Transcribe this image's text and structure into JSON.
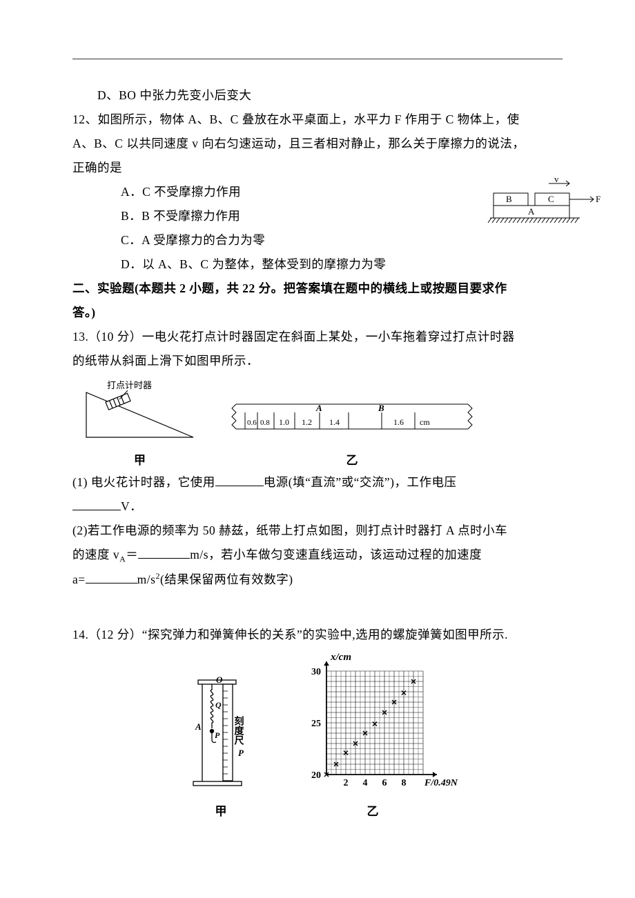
{
  "q11": {
    "optD": "D、BO 中张力先变小后变大"
  },
  "q12": {
    "stem1": "12、如图所示，物体 A、B、C 叠放在水平桌面上，水平力 F 作用于 C 物体上，使",
    "stem2": "A、B、C 以共同速度 v 向右匀速运动，且三者相对静止，那么关于摩擦力的说法，",
    "stem3": "正确的是",
    "optA": "A．C 不受摩擦力作用",
    "optB": "B．B 不受摩擦力作用",
    "optC": "C．A 受摩擦力的合力为零",
    "optD": "D．以 A、B、C 为整体，整体受到的摩擦力为零",
    "diagram": {
      "labels": {
        "v": "v",
        "B": "B",
        "C": "C",
        "A": "A",
        "F": "F"
      },
      "stroke": "#000000"
    }
  },
  "section2": {
    "title1": "二、实验题(本题共 2 小题，共 22 分。把答案填在题中的横线上或按题目要求作",
    "title2": "答。)"
  },
  "q13": {
    "stem1": "13.（10 分）一电火花打点计时器固定在斜面上某处，一小车拖着穿过打点计时器",
    "stem2": "的纸带从斜面上滑下如图甲所示．",
    "fig1": {
      "timer_label": "打点计时器",
      "caption": "甲"
    },
    "fig2": {
      "ticks": [
        "0.6",
        "0.8",
        "1.0",
        "1.2",
        "1.4",
        "1.6"
      ],
      "unit": "cm",
      "pointA": "A",
      "pointB": "B",
      "caption": "乙"
    },
    "p1a": "(1) 电火花计时器，它使用",
    "p1b": "电源(填“直流”或“交流”)，工作电压",
    "p1c": "V．",
    "p2a": "(2)若工作电源的频率为 50 赫兹，纸带上打点如图，则打点计时器打 A 点时小车",
    "p2b_pre": "的速度 v",
    "p2b_sub": "A",
    "p2b_mid": "＝",
    "p2b_post": "m/s，若小车做匀变速直线运动，该运动过程的加速度",
    "p2c_pre": "a=",
    "p2c_unit": "m/s",
    "p2c_sup": "2",
    "p2c_post": "(结果保留两位有效数字)"
  },
  "q14": {
    "stem": "14.（12 分）“探究弹力和弹簧伸长的关系”的实验中,选用的螺旋弹簧如图甲所示.",
    "fig1": {
      "O": "O",
      "Q": "Q",
      "A": "A",
      "P": "P",
      "ruler": "刻度尺",
      "rulerP": "P",
      "caption": "甲"
    },
    "fig2": {
      "ylabel": "x/cm",
      "yticks": [
        "20",
        "25",
        "30"
      ],
      "xlabel": "F/0.49N",
      "xticks": [
        "2",
        "4",
        "6",
        "8"
      ],
      "caption": "乙",
      "grid_color": "#000000",
      "bg_color": "#ffffff",
      "points": [
        {
          "x": 0,
          "y": 20.0
        },
        {
          "x": 1,
          "y": 21.0
        },
        {
          "x": 2,
          "y": 22.1
        },
        {
          "x": 3,
          "y": 23.0
        },
        {
          "x": 4,
          "y": 24.0
        },
        {
          "x": 5,
          "y": 24.9
        },
        {
          "x": 6,
          "y": 26.0
        },
        {
          "x": 7,
          "y": 27.0
        },
        {
          "x": 8,
          "y": 27.9
        },
        {
          "x": 9,
          "y": 29.0
        }
      ],
      "xrange": [
        0,
        10
      ],
      "yrange": [
        20,
        30
      ]
    }
  }
}
